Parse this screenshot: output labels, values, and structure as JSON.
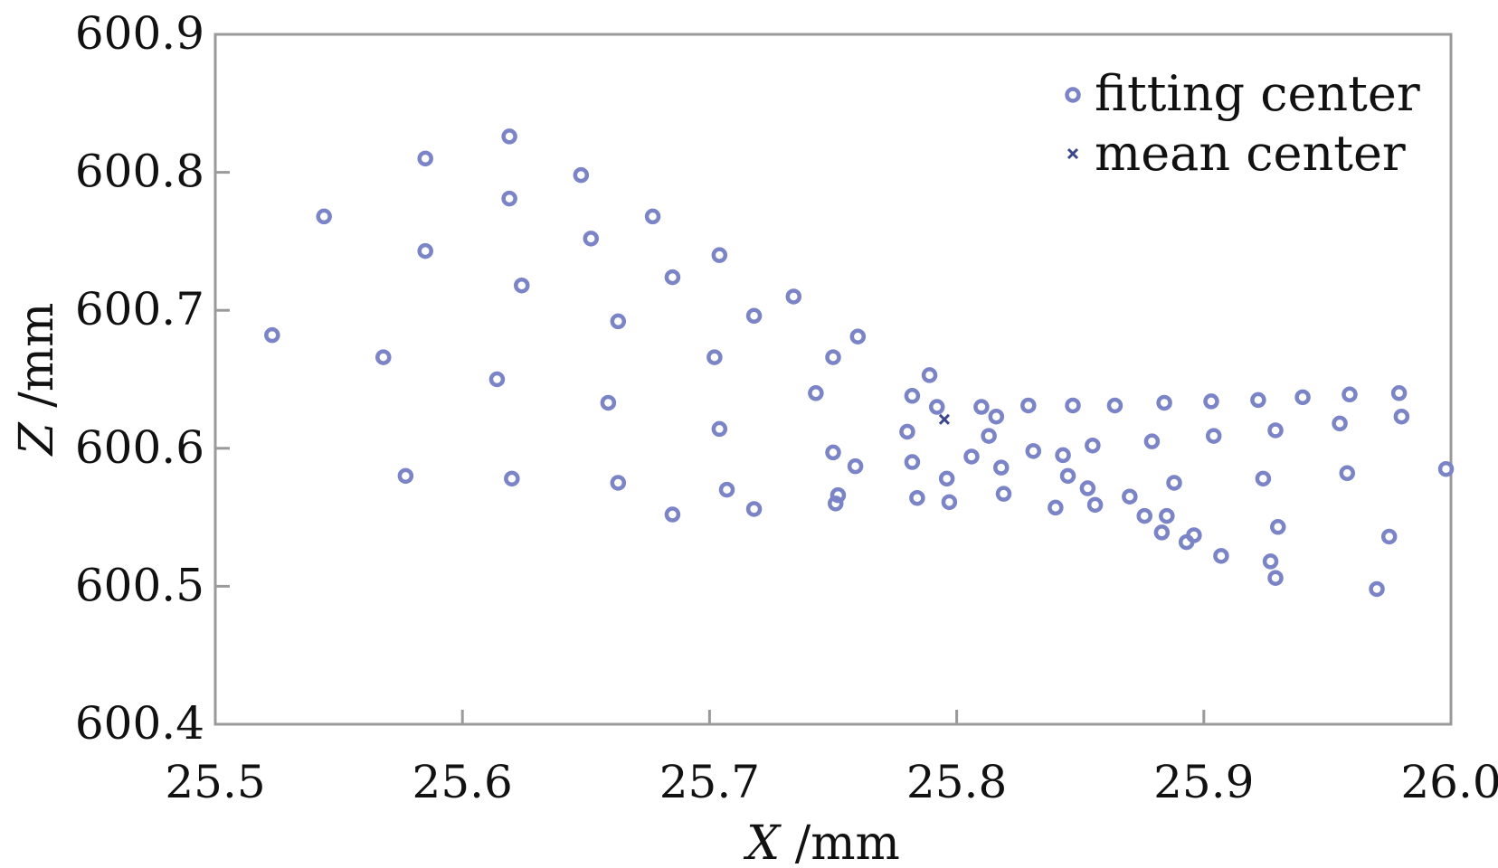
{
  "chart_data": {
    "type": "scatter",
    "title": "",
    "xlabel_var": "X",
    "xlabel_unit": " /mm",
    "ylabel_var": "Z",
    "ylabel_unit": " /mm",
    "xlim": [
      25.5,
      26.0
    ],
    "ylim": [
      600.4,
      600.9
    ],
    "xticks": [
      "25.5",
      "25.6",
      "25.7",
      "25.8",
      "25.9",
      "26.0"
    ],
    "yticks": [
      "600.4",
      "600.5",
      "600.6",
      "600.7",
      "600.8",
      "600.9"
    ],
    "grid": false,
    "legend_position": "top-right",
    "colors": {
      "marker": "#7b84c6",
      "marker_dark": "#3c468f",
      "axis": "#9a9a9a"
    },
    "series": [
      {
        "name": "fitting center",
        "marker": "circle",
        "points": [
          [
            25.523,
            600.682
          ],
          [
            25.544,
            600.768
          ],
          [
            25.568,
            600.666
          ],
          [
            25.577,
            600.58
          ],
          [
            25.585,
            600.81
          ],
          [
            25.585,
            600.743
          ],
          [
            25.614,
            600.65
          ],
          [
            25.619,
            600.826
          ],
          [
            25.619,
            600.781
          ],
          [
            25.62,
            600.578
          ],
          [
            25.624,
            600.718
          ],
          [
            25.648,
            600.798
          ],
          [
            25.652,
            600.752
          ],
          [
            25.659,
            600.633
          ],
          [
            25.663,
            600.692
          ],
          [
            25.663,
            600.575
          ],
          [
            25.677,
            600.768
          ],
          [
            25.685,
            600.724
          ],
          [
            25.685,
            600.552
          ],
          [
            25.702,
            600.666
          ],
          [
            25.704,
            600.74
          ],
          [
            25.704,
            600.614
          ],
          [
            25.707,
            600.57
          ],
          [
            25.718,
            600.696
          ],
          [
            25.718,
            600.556
          ],
          [
            25.734,
            600.71
          ],
          [
            25.743,
            600.64
          ],
          [
            25.75,
            600.666
          ],
          [
            25.75,
            600.597
          ],
          [
            25.751,
            600.56
          ],
          [
            25.752,
            600.566
          ],
          [
            25.76,
            600.681
          ],
          [
            25.759,
            600.587
          ],
          [
            25.78,
            600.612
          ],
          [
            25.782,
            600.638
          ],
          [
            25.782,
            600.59
          ],
          [
            25.784,
            600.564
          ],
          [
            25.789,
            600.653
          ],
          [
            25.792,
            600.63
          ],
          [
            25.796,
            600.578
          ],
          [
            25.797,
            600.561
          ],
          [
            25.806,
            600.594
          ],
          [
            25.81,
            600.63
          ],
          [
            25.813,
            600.609
          ],
          [
            25.816,
            600.623
          ],
          [
            25.818,
            600.586
          ],
          [
            25.819,
            600.567
          ],
          [
            25.829,
            600.631
          ],
          [
            25.831,
            600.598
          ],
          [
            25.84,
            600.557
          ],
          [
            25.843,
            600.595
          ],
          [
            25.845,
            600.58
          ],
          [
            25.847,
            600.631
          ],
          [
            25.853,
            600.571
          ],
          [
            25.855,
            600.602
          ],
          [
            25.856,
            600.559
          ],
          [
            25.864,
            600.631
          ],
          [
            25.87,
            600.565
          ],
          [
            25.876,
            600.551
          ],
          [
            25.879,
            600.605
          ],
          [
            25.883,
            600.539
          ],
          [
            25.884,
            600.633
          ],
          [
            25.885,
            600.551
          ],
          [
            25.888,
            600.575
          ],
          [
            25.893,
            600.532
          ],
          [
            25.896,
            600.537
          ],
          [
            25.903,
            600.634
          ],
          [
            25.904,
            600.609
          ],
          [
            25.907,
            600.522
          ],
          [
            25.922,
            600.635
          ],
          [
            25.924,
            600.578
          ],
          [
            25.927,
            600.518
          ],
          [
            25.929,
            600.613
          ],
          [
            25.929,
            600.506
          ],
          [
            25.93,
            600.543
          ],
          [
            25.94,
            600.637
          ],
          [
            25.955,
            600.618
          ],
          [
            25.958,
            600.582
          ],
          [
            25.959,
            600.639
          ],
          [
            25.97,
            600.498
          ],
          [
            25.975,
            600.536
          ],
          [
            25.979,
            600.64
          ],
          [
            25.98,
            600.623
          ],
          [
            25.998,
            600.585
          ]
        ]
      },
      {
        "name": "mean center",
        "marker": "x",
        "points": [
          [
            25.795,
            600.621
          ]
        ]
      }
    ]
  }
}
